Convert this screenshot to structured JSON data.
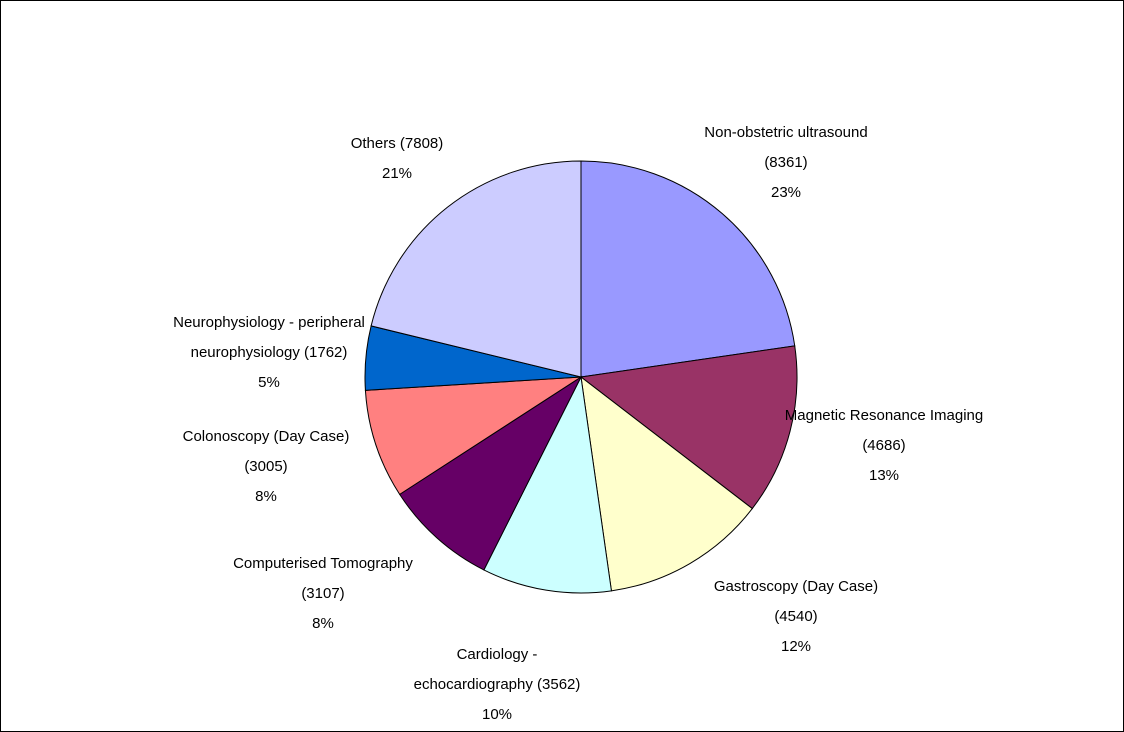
{
  "chart_data": {
    "type": "pie",
    "title": "",
    "start_angle_deg": 0,
    "direction": "clockwise",
    "border_color": "#000000",
    "slices": [
      {
        "label_lines": [
          "Non-obstetric ultrasound",
          "(8361)"
        ],
        "value": 8361,
        "percent": "23%",
        "color": "#9999FF"
      },
      {
        "label_lines": [
          "Magnetic Resonance Imaging",
          "(4686)"
        ],
        "value": 4686,
        "percent": "13%",
        "color": "#993366"
      },
      {
        "label_lines": [
          "Gastroscopy (Day Case)",
          "(4540)"
        ],
        "value": 4540,
        "percent": "12%",
        "color": "#FFFFCC"
      },
      {
        "label_lines": [
          "Cardiology -",
          "echocardiography (3562)"
        ],
        "value": 3562,
        "percent": "10%",
        "color": "#CCFFFF"
      },
      {
        "label_lines": [
          "Computerised Tomography",
          "(3107)"
        ],
        "value": 3107,
        "percent": "8%",
        "color": "#660066"
      },
      {
        "label_lines": [
          "Colonoscopy (Day Case)",
          "(3005)"
        ],
        "value": 3005,
        "percent": "8%",
        "color": "#FF8080"
      },
      {
        "label_lines": [
          "Neurophysiology - peripheral",
          "neurophysiology (1762)"
        ],
        "value": 1762,
        "percent": "5%",
        "color": "#0066CC"
      },
      {
        "label_lines": [
          "Others (7808)"
        ],
        "value": 7808,
        "percent": "21%",
        "color": "#CCCCFF"
      }
    ]
  }
}
